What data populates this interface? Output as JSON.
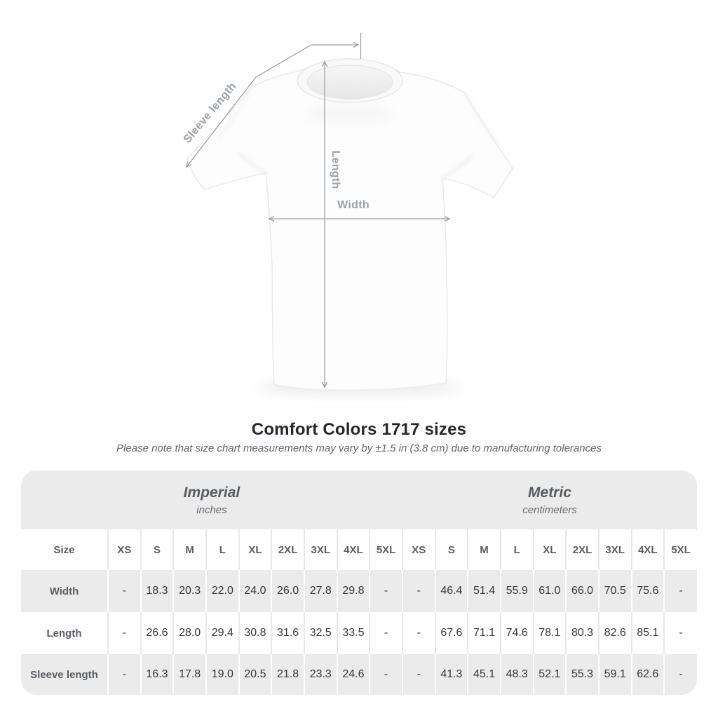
{
  "chart_data": {
    "type": "table",
    "title": "Comfort Colors 1717 sizes",
    "subtitle": "Please note that size chart measurements may vary by ±1.5 in (3.8 cm) due to manufacturing tolerances",
    "row_header": "Size",
    "column_groups": [
      {
        "label": "Imperial",
        "unit": "inches",
        "sizes": [
          "XS",
          "S",
          "M",
          "L",
          "XL",
          "2XL",
          "3XL",
          "4XL",
          "5XL"
        ]
      },
      {
        "label": "Metric",
        "unit": "centimeters",
        "sizes": [
          "XS",
          "S",
          "M",
          "L",
          "XL",
          "2XL",
          "3XL",
          "4XL",
          "5XL"
        ]
      }
    ],
    "rows": [
      {
        "label": "Width",
        "imperial": [
          "-",
          "18.3",
          "20.3",
          "22.0",
          "24.0",
          "26.0",
          "27.8",
          "29.8",
          "-"
        ],
        "metric": [
          "-",
          "46.4",
          "51.4",
          "55.9",
          "61.0",
          "66.0",
          "70.5",
          "75.6",
          "-"
        ]
      },
      {
        "label": "Length",
        "imperial": [
          "-",
          "26.6",
          "28.0",
          "29.4",
          "30.8",
          "31.6",
          "32.5",
          "33.5",
          "-"
        ],
        "metric": [
          "-",
          "67.6",
          "71.1",
          "74.6",
          "78.1",
          "80.3",
          "82.6",
          "85.1",
          "-"
        ]
      },
      {
        "label": "Sleeve length",
        "imperial": [
          "-",
          "16.3",
          "17.8",
          "19.0",
          "20.5",
          "21.8",
          "23.3",
          "24.6",
          "-"
        ],
        "metric": [
          "-",
          "41.3",
          "45.1",
          "48.3",
          "52.1",
          "55.3",
          "59.1",
          "62.6",
          "-"
        ]
      }
    ]
  },
  "figure": {
    "length_label": "Length",
    "width_label": "Width",
    "sleeve_label": "Sleeve length"
  },
  "colors": {
    "annotation_gray": "#9aa1a8",
    "table_band_gray": "#ebebeb",
    "title_text": "#24282d"
  }
}
